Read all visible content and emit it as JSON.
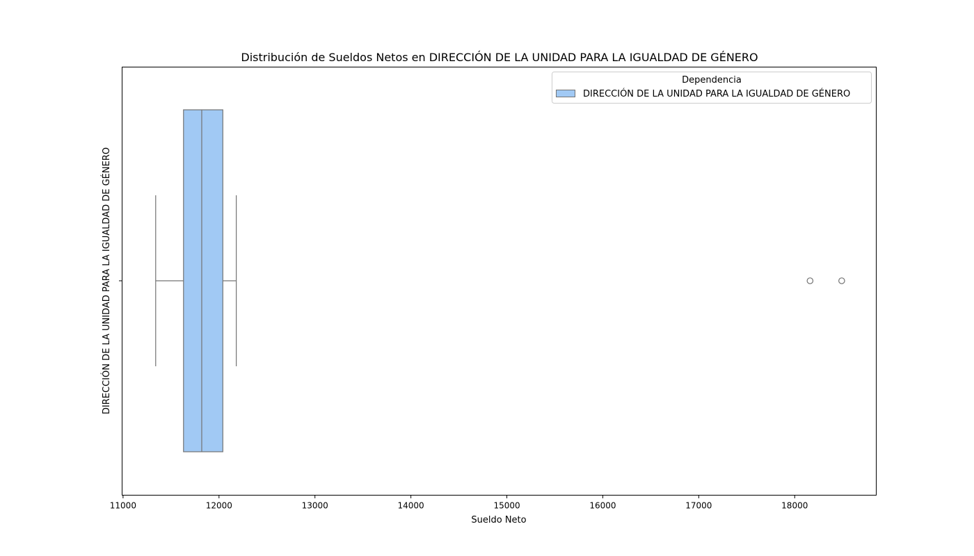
{
  "chart_data": {
    "type": "boxplot",
    "title": "Distribución de Sueldos Netos en DIRECCIÓN DE LA UNIDAD PARA LA IGUALDAD DE GÉNERO",
    "xlabel": "Sueldo Neto",
    "ylabel": "DIRECCIÓN DE LA UNIDAD PARA LA IGUALDAD DE GÉNERO",
    "xlim": [
      10990,
      18850
    ],
    "xticks": [
      11000,
      12000,
      13000,
      14000,
      15000,
      16000,
      17000,
      18000
    ],
    "xtick_labels": [
      "11000",
      "12000",
      "13000",
      "14000",
      "15000",
      "16000",
      "17000",
      "18000"
    ],
    "grid": false,
    "legend": {
      "title": "Dependencia",
      "placement": "top-right",
      "entries": [
        "DIRECCIÓN DE LA UNIDAD PARA LA IGUALDAD DE GÉNERO"
      ]
    },
    "series": [
      {
        "name": "DIRECCIÓN DE LA UNIDAD PARA LA IGUALDAD DE GÉNERO",
        "color": "#a1c9f4",
        "edge_color": "#737373",
        "whisker_low": 11340,
        "q1": 11630,
        "median": 11820,
        "q3": 12040,
        "whisker_high": 12180,
        "outliers": [
          18160,
          18490
        ]
      }
    ]
  }
}
